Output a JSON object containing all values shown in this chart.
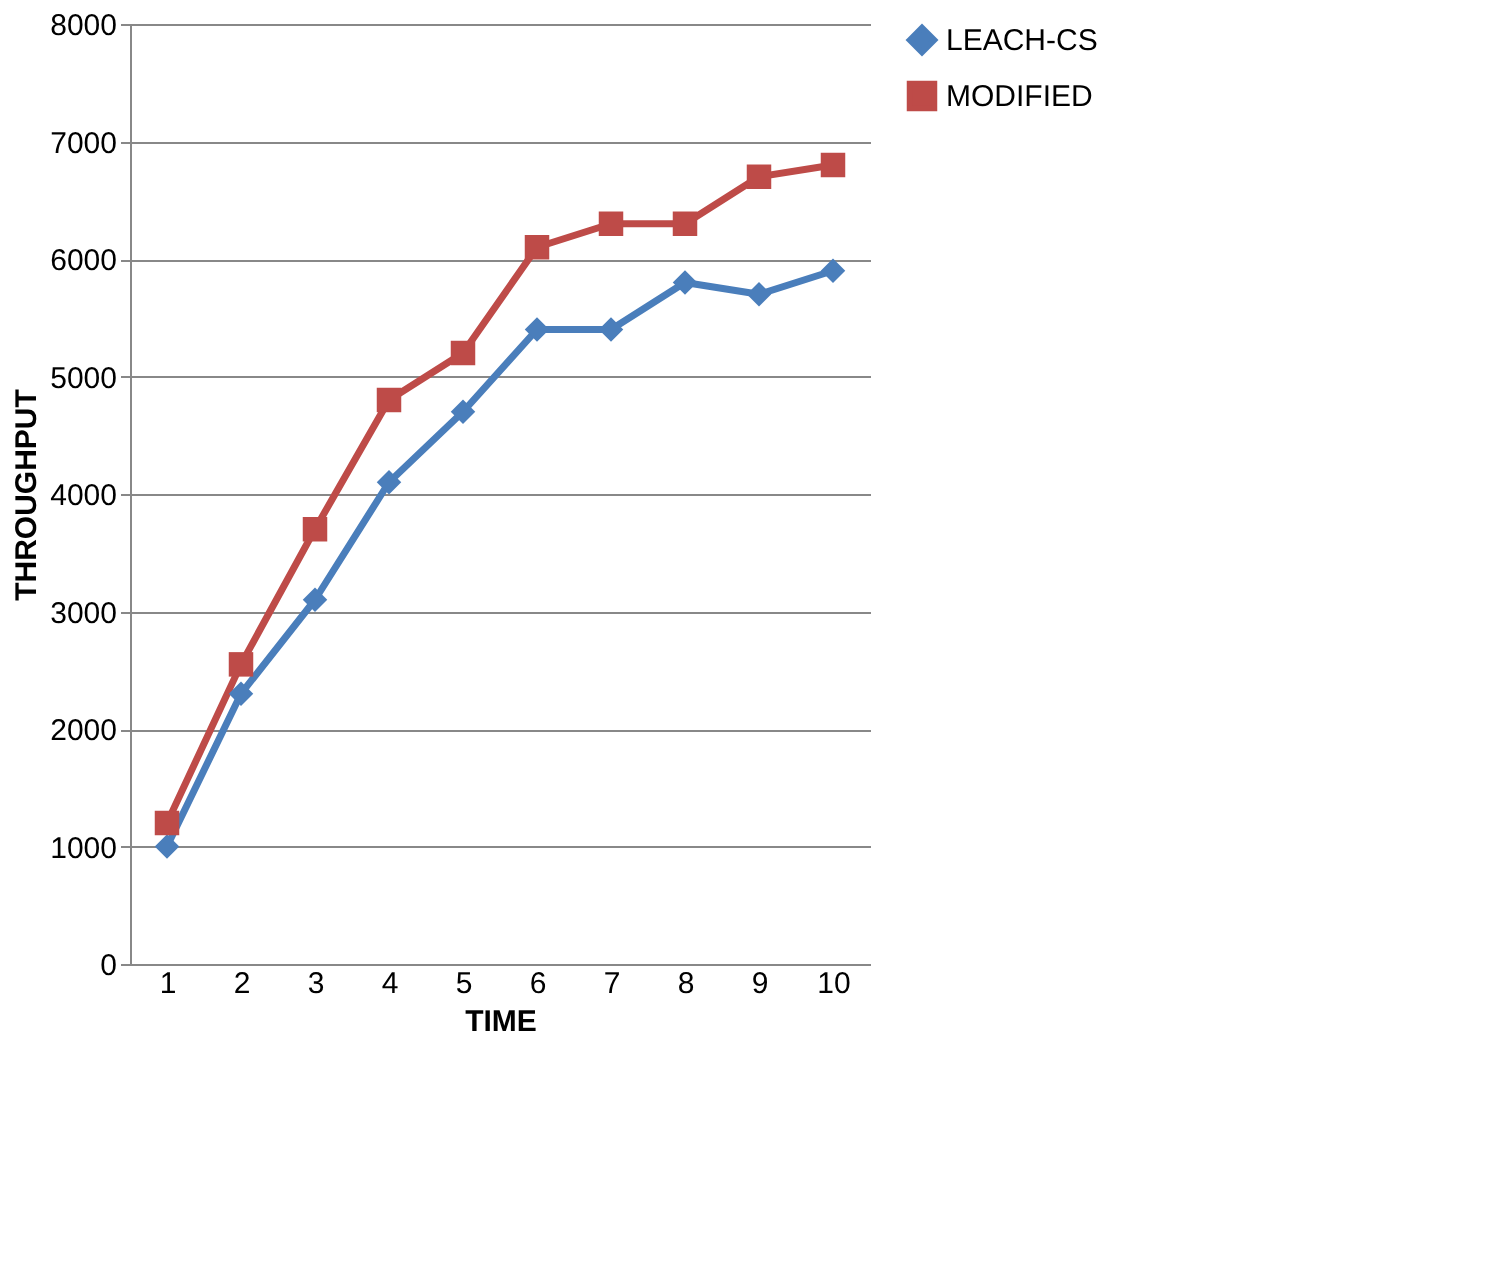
{
  "chart_data": {
    "type": "line",
    "xlabel": "TIME",
    "ylabel": "THROUGHPUT",
    "categories": [
      "1",
      "2",
      "3",
      "4",
      "5",
      "6",
      "7",
      "8",
      "9",
      "10"
    ],
    "series": [
      {
        "name": "LEACH-CS",
        "color": "#4a7ebb",
        "marker": "diamond",
        "values": [
          1000,
          2300,
          3100,
          4100,
          4700,
          5400,
          5400,
          5800,
          5700,
          5900
        ]
      },
      {
        "name": "MODIFIED",
        "color": "#be4b48",
        "marker": "square",
        "values": [
          1200,
          2550,
          3700,
          4800,
          5200,
          6100,
          6300,
          6300,
          6700,
          6800
        ]
      }
    ],
    "ylim": [
      0,
      8000
    ],
    "yticks": [
      0,
      1000,
      2000,
      3000,
      4000,
      5000,
      6000,
      7000,
      8000
    ],
    "grid": "y",
    "legend": "top right",
    "line_style": "solid"
  }
}
